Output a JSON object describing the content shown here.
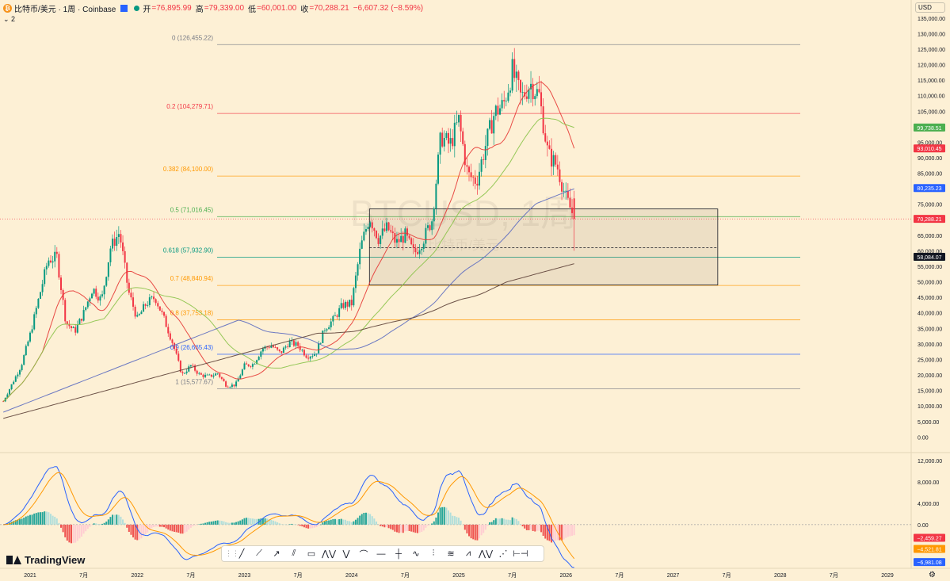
{
  "header": {
    "symbol": "比特币/美元 · 1周 · Coinbase",
    "open_label": "开",
    "open": "=76,895.99",
    "high_label": "高",
    "high": "=79,339.00",
    "low_label": "低",
    "low": "=60,001.00",
    "close_label": "收",
    "close": "=70,288.21",
    "change": "−6,607.32 (−8.59%)",
    "indicator_toggle": "⌄ 2",
    "currency": "USD"
  },
  "watermark": {
    "line1": "BTCUSD, 1周",
    "line2": "比特币/美元"
  },
  "brand": {
    "name": "TradingView"
  },
  "toolbar_icons": [
    "trend-line-icon",
    "ray-icon",
    "arrow-icon",
    "parallel-channel-icon",
    "rectangle-icon",
    "xabcd-pattern-icon",
    "abcd-pattern-icon",
    "path-icon",
    "horizontal-line-icon",
    "crosshair-icon",
    "curve-icon",
    "fib-retracement-icon",
    "gann-fan-icon",
    "head-shoulders-icon",
    "elliott-wave-icon",
    "forecast-icon",
    "date-range-icon"
  ],
  "toolbar_glyphs": [
    "╱",
    "⟋",
    "↗",
    "⫽",
    "▭",
    "⋀⋁",
    "⋁",
    "⌒",
    "—",
    "┼",
    "∿",
    "⫶",
    "≋",
    "⩘",
    "⋀⋁",
    "⋰",
    "⊢⊣"
  ],
  "chart_data": {
    "type": "candlestick",
    "x_axis": {
      "ticks": [
        "2021",
        "7月",
        "2022",
        "7月",
        "2023",
        "7月",
        "2024",
        "7月",
        "2025",
        "7月",
        "2026",
        "7月",
        "2027",
        "7月",
        "2028",
        "7月",
        "2029"
      ],
      "range": [
        "2020-10",
        "2029-01"
      ]
    },
    "y_axis": {
      "ticks": [
        "135,000.00",
        "130,000.00",
        "125,000.00",
        "120,000.00",
        "115,000.00",
        "110,000.00",
        "105,000.00",
        "95,000.00",
        "90,000.00",
        "85,000.00",
        "75,000.00",
        "65,000.00",
        "60,000.00",
        "55,000.00",
        "50,000.00",
        "45,000.00",
        "40,000.00",
        "35,000.00",
        "30,000.00",
        "25,000.00",
        "20,000.00",
        "15,000.00",
        "10,000.00",
        "5,000.00",
        "0.00"
      ],
      "tick_values": [
        135000,
        130000,
        125000,
        120000,
        115000,
        110000,
        105000,
        95000,
        90000,
        85000,
        75000,
        65000,
        60000,
        55000,
        50000,
        45000,
        40000,
        35000,
        30000,
        25000,
        20000,
        15000,
        10000,
        5000,
        0
      ],
      "range": [
        -4000,
        137000
      ]
    },
    "price_badges": [
      {
        "value": 99738.51,
        "text": "99,738.51",
        "color": "#4caf50"
      },
      {
        "value": 93010.45,
        "text": "93,010.45",
        "color": "#f23645"
      },
      {
        "value": 80235.23,
        "text": "80,235.23",
        "color": "#2962ff"
      },
      {
        "value": 70288.21,
        "text": "70,288.21",
        "color": "#f23645"
      },
      {
        "value": 58084.07,
        "text": "58,084.07",
        "color": "#131722"
      }
    ],
    "fibonacci": [
      {
        "ratio": "0",
        "value": 126455.22,
        "label": "0 (126,455.22)",
        "color": "#787b86"
      },
      {
        "ratio": "0.2",
        "value": 104279.71,
        "label": "0.2 (104,279.71)",
        "color": "#f23645"
      },
      {
        "ratio": "0.382",
        "value": 84100.0,
        "label": "0.382 (84,100.00)",
        "color": "#ff9800"
      },
      {
        "ratio": "0.5",
        "value": 71016.45,
        "label": "0.5 (71,016.45)",
        "color": "#4caf50"
      },
      {
        "ratio": "0.618",
        "value": 57932.9,
        "label": "0.618 (57,932.90)",
        "color": "#089981"
      },
      {
        "ratio": "0.7",
        "value": 48840.94,
        "label": "0.7 (48,840.94)",
        "color": "#ff9800"
      },
      {
        "ratio": "0.8",
        "value": 37753.18,
        "label": "0.8 (37,753.18)",
        "color": "#ff9800"
      },
      {
        "ratio": "0.9",
        "value": 26665.43,
        "label": "0.9 (26,665.43)",
        "color": "#2962ff"
      },
      {
        "ratio": "1",
        "value": 15577.67,
        "label": "1 (15,577.67)",
        "color": "#787b86"
      }
    ],
    "zone": {
      "top": 73500,
      "bottom": 49000,
      "mid": 61000,
      "start": "2024-03",
      "end": "2027-06"
    },
    "price_key": [
      {
        "date": "2020-10",
        "close": 11500
      },
      {
        "date": "2020-12",
        "close": 23000
      },
      {
        "date": "2021-01",
        "close": 33000
      },
      {
        "date": "2021-02",
        "close": 45000
      },
      {
        "date": "2021-03",
        "close": 57000
      },
      {
        "date": "2021-04",
        "close": 58000
      },
      {
        "date": "2021-05",
        "close": 37000
      },
      {
        "date": "2021-06",
        "close": 34000
      },
      {
        "date": "2021-07",
        "close": 40000
      },
      {
        "date": "2021-08",
        "close": 48000
      },
      {
        "date": "2021-09",
        "close": 44000
      },
      {
        "date": "2021-10",
        "close": 61000
      },
      {
        "date": "2021-11",
        "close": 66000
      },
      {
        "date": "2021-12",
        "close": 47000
      },
      {
        "date": "2022-01",
        "close": 38000
      },
      {
        "date": "2022-02",
        "close": 43000
      },
      {
        "date": "2022-03",
        "close": 45000
      },
      {
        "date": "2022-04",
        "close": 38000
      },
      {
        "date": "2022-05",
        "close": 30000
      },
      {
        "date": "2022-06",
        "close": 20000
      },
      {
        "date": "2022-07",
        "close": 23000
      },
      {
        "date": "2022-08",
        "close": 20000
      },
      {
        "date": "2022-09",
        "close": 19500
      },
      {
        "date": "2022-10",
        "close": 20500
      },
      {
        "date": "2022-11",
        "close": 16500
      },
      {
        "date": "2022-12",
        "close": 16800
      },
      {
        "date": "2023-01",
        "close": 23000
      },
      {
        "date": "2023-02",
        "close": 23500
      },
      {
        "date": "2023-03",
        "close": 28500
      },
      {
        "date": "2023-04",
        "close": 29500
      },
      {
        "date": "2023-05",
        "close": 27000
      },
      {
        "date": "2023-06",
        "close": 30500
      },
      {
        "date": "2023-07",
        "close": 29500
      },
      {
        "date": "2023-08",
        "close": 26000
      },
      {
        "date": "2023-09",
        "close": 27000
      },
      {
        "date": "2023-10",
        "close": 35000
      },
      {
        "date": "2023-11",
        "close": 38000
      },
      {
        "date": "2023-12",
        "close": 42500
      },
      {
        "date": "2024-01",
        "close": 43000
      },
      {
        "date": "2024-02",
        "close": 61000
      },
      {
        "date": "2024-03",
        "close": 71000
      },
      {
        "date": "2024-04",
        "close": 64000
      },
      {
        "date": "2024-05",
        "close": 67500
      },
      {
        "date": "2024-06",
        "close": 62500
      },
      {
        "date": "2024-07",
        "close": 65000
      },
      {
        "date": "2024-08",
        "close": 59000
      },
      {
        "date": "2024-09",
        "close": 63500
      },
      {
        "date": "2024-10",
        "close": 70000
      },
      {
        "date": "2024-11",
        "close": 97000
      },
      {
        "date": "2024-12",
        "close": 94000
      },
      {
        "date": "2025-01",
        "close": 102000
      },
      {
        "date": "2025-02",
        "close": 84500
      },
      {
        "date": "2025-03",
        "close": 82500
      },
      {
        "date": "2025-04",
        "close": 94000
      },
      {
        "date": "2025-05",
        "close": 104500
      },
      {
        "date": "2025-06",
        "close": 107000
      },
      {
        "date": "2025-07",
        "close": 118000
      },
      {
        "date": "2025-08",
        "close": 109000
      },
      {
        "date": "2025-09",
        "close": 114000
      },
      {
        "date": "2025-10",
        "close": 110000
      },
      {
        "date": "2025-11",
        "close": 91000
      },
      {
        "date": "2025-12",
        "close": 87500
      },
      {
        "date": "2026-01",
        "close": 77000
      },
      {
        "date": "2026-02",
        "close": 70288
      }
    ],
    "moving_averages": [
      {
        "color": "#e53935",
        "last": 93010.45
      },
      {
        "color": "#8bc34a",
        "last": 99738.51
      },
      {
        "color": "#5c6bc0",
        "last": 80235.23
      },
      {
        "color": "#5d4037",
        "last": 58084.07
      }
    ],
    "macd": {
      "y_ticks": [
        "12,000.00",
        "8,000.00",
        "4,000.00",
        "0.00"
      ],
      "y_tick_values": [
        12000,
        8000,
        4000,
        0
      ],
      "range": [
        -8000,
        13000
      ],
      "badges": [
        {
          "value": -2459.27,
          "text": "−2,459.27",
          "color": "#f23645"
        },
        {
          "value": -4521.81,
          "text": "−4,521.81",
          "color": "#ff9800"
        },
        {
          "value": -6981.08,
          "text": "−6,981.08",
          "color": "#2962ff"
        }
      ]
    }
  }
}
